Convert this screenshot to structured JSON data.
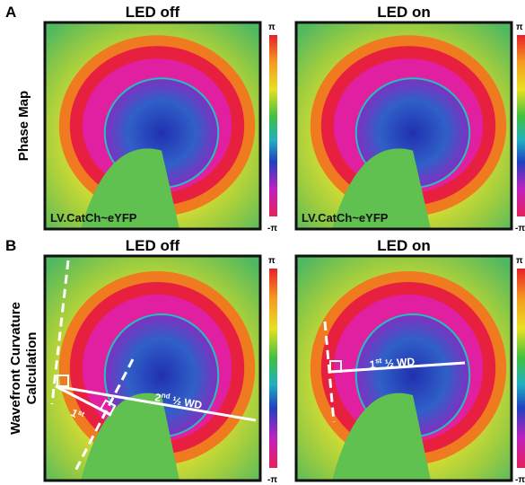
{
  "panels": [
    {
      "letter": "A",
      "row_label": [
        "Phase Map"
      ],
      "maps": [
        {
          "title": "LED off",
          "annotation": "LV.CatCh~eYFP",
          "colorbar_top": "π",
          "colorbar_bottom": "-π"
        },
        {
          "title": "LED on",
          "annotation": "LV.CatCh~eYFP",
          "colorbar_top": "π",
          "colorbar_bottom": "-π"
        }
      ]
    },
    {
      "letter": "B",
      "row_label": [
        "Wavefront Curvature",
        "Calculation"
      ],
      "maps": [
        {
          "title": "LED off",
          "colorbar_top": "π",
          "colorbar_bottom": "-π",
          "labels": [
            {
              "main": "1",
              "sup": "st",
              "rest": ""
            },
            {
              "main": "2",
              "sup": "nd",
              "rest": " ½ WD"
            }
          ]
        },
        {
          "title": "LED on",
          "colorbar_top": "π",
          "colorbar_bottom": "-π",
          "labels": [
            {
              "main": "1",
              "sup": "st",
              "rest": " ½ WD"
            }
          ]
        }
      ]
    }
  ]
}
